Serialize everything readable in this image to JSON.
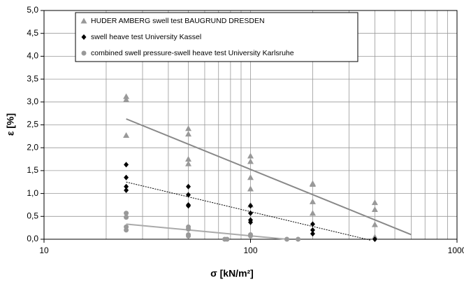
{
  "chart_data": {
    "type": "scatter",
    "xscale": "log",
    "xlabel": "σ [kN/m²]",
    "ylabel": "ε [%]",
    "xlim": [
      10,
      1000
    ],
    "xticks": [
      10,
      100,
      1000
    ],
    "xgrid_minor": [
      20,
      30,
      40,
      50,
      60,
      70,
      80,
      90,
      200,
      300,
      400,
      500,
      600,
      700,
      800,
      900
    ],
    "ylim": [
      0,
      5
    ],
    "yticks": [
      {
        "value": 0,
        "label": "0,0"
      },
      {
        "value": 0.5,
        "label": "0,5"
      },
      {
        "value": 1,
        "label": "1,0"
      },
      {
        "value": 1.5,
        "label": "1,5"
      },
      {
        "value": 2,
        "label": "2,0"
      },
      {
        "value": 2.5,
        "label": "2,5"
      },
      {
        "value": 3,
        "label": "3,0"
      },
      {
        "value": 3.5,
        "label": "3,5"
      },
      {
        "value": 4,
        "label": "4,0"
      },
      {
        "value": 4.5,
        "label": "4,5"
      },
      {
        "value": 5,
        "label": "5,0"
      }
    ],
    "grid": true,
    "series": [
      {
        "name": "HUDER AMBERG swell test BAUGRUND DRESDEN",
        "color": "#999999",
        "marker": "triangle",
        "x": [
          25,
          25,
          25,
          50,
          50,
          50,
          50,
          100,
          100,
          100,
          100,
          100,
          200,
          200,
          200,
          200,
          400,
          400,
          400,
          400
        ],
        "values": [
          3.12,
          3.05,
          2.27,
          2.42,
          2.3,
          1.75,
          1.65,
          1.82,
          1.7,
          1.35,
          1.1,
          0.75,
          1.22,
          1.2,
          0.82,
          0.57,
          0.8,
          0.65,
          0.32,
          0.05
        ],
        "trendline": {
          "x": [
            25,
            600
          ],
          "y": [
            2.63,
            0.1
          ],
          "color": "#888888",
          "dash": false
        }
      },
      {
        "name": "swell heave test University Kassel",
        "color": "#000000",
        "marker": "diamond",
        "x": [
          25,
          25,
          25,
          25,
          50,
          50,
          50,
          50,
          100,
          100,
          100,
          100,
          200,
          200,
          200,
          400
        ],
        "values": [
          1.63,
          1.35,
          1.15,
          1.07,
          1.15,
          0.97,
          0.75,
          0.73,
          0.73,
          0.57,
          0.42,
          0.37,
          0.33,
          0.2,
          0.12,
          0.0
        ],
        "trendline": {
          "x": [
            25,
            380
          ],
          "y": [
            1.25,
            -0.02
          ],
          "color": "#000000",
          "dash": true
        }
      },
      {
        "name": "combined swell pressure-swell heave test University Karlsruhe",
        "color": "#999999",
        "marker": "circle",
        "x": [
          25,
          25,
          25,
          25,
          50,
          50,
          50,
          50,
          75,
          77,
          100,
          100,
          150,
          170
        ],
        "values": [
          0.57,
          0.48,
          0.27,
          0.2,
          0.27,
          0.22,
          0.1,
          0.07,
          0.0,
          0.0,
          0.1,
          0.07,
          0.0,
          0.0
        ],
        "trendline": {
          "x": [
            25,
            150
          ],
          "y": [
            0.33,
            0.0
          ],
          "color": "#aaaaaa",
          "dash": false
        }
      }
    ],
    "legend": "top"
  }
}
